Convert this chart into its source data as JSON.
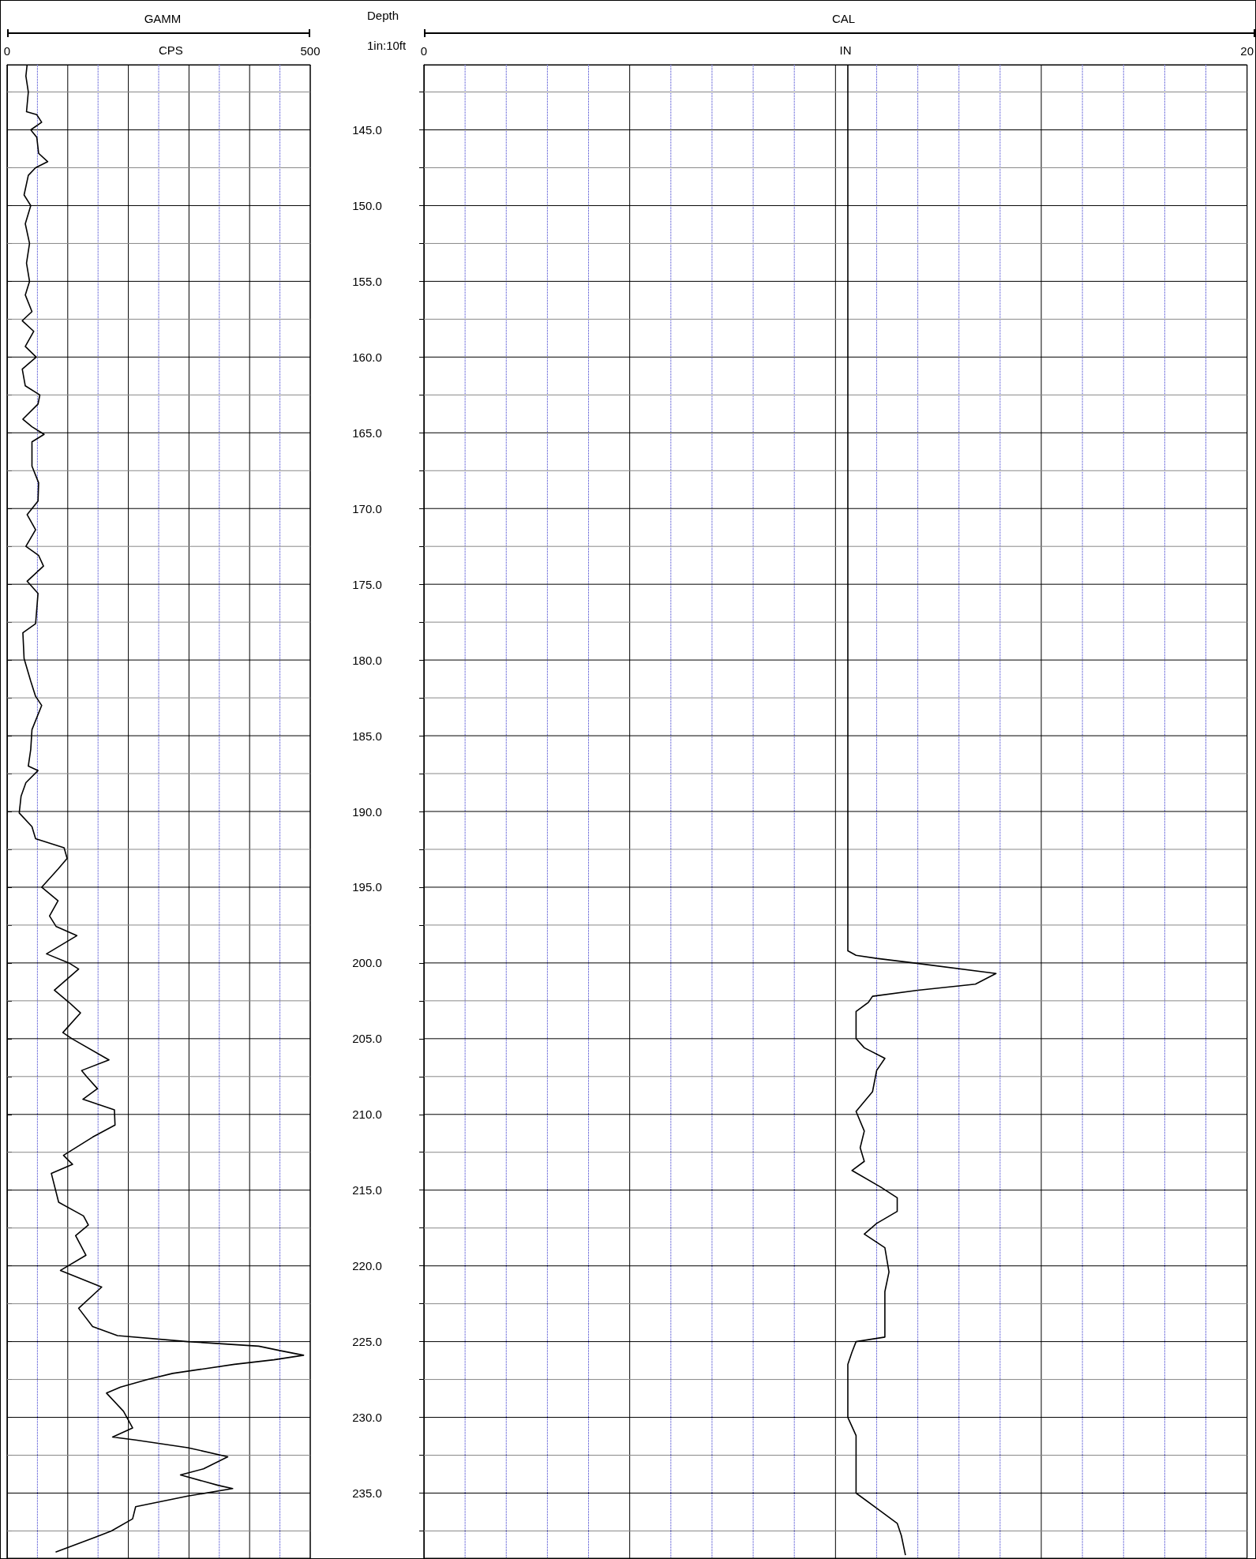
{
  "chart_data": [
    {
      "type": "line",
      "title": "GAMM",
      "xlabel": "CPS",
      "ylabel": "Depth",
      "annotations": [
        "1in:10ft"
      ],
      "grid": true,
      "marker": "none",
      "xlim": [
        0,
        500
      ],
      "xticks": [
        0,
        {
          "value": 50,
          "label": null
        },
        {
          "value": 100,
          "label": null
        },
        {
          "value": 150,
          "label": null
        },
        {
          "value": 200,
          "label": null
        },
        {
          "value": 250,
          "label": null
        },
        {
          "value": 300,
          "label": null
        },
        {
          "value": 350,
          "label": null
        },
        {
          "value": 400,
          "label": null
        },
        {
          "value": 450,
          "label": null
        },
        500
      ],
      "ylim": [
        239.3,
        140.7
      ],
      "yticks": [
        {
          "value": 142.5,
          "label": null
        },
        {
          "value": 145,
          "label": "145.0"
        },
        {
          "value": 147.5,
          "label": null
        },
        {
          "value": 150,
          "label": "150.0"
        },
        {
          "value": 152.5,
          "label": null
        },
        {
          "value": 155,
          "label": "155.0"
        },
        {
          "value": 157.5,
          "label": null
        },
        {
          "value": 160,
          "label": "160.0"
        },
        {
          "value": 162.5,
          "label": null
        },
        {
          "value": 165,
          "label": "165.0"
        },
        {
          "value": 167.5,
          "label": null
        },
        {
          "value": 170,
          "label": "170.0"
        },
        {
          "value": 172.5,
          "label": null
        },
        {
          "value": 175,
          "label": "175.0"
        },
        {
          "value": 177.5,
          "label": null
        },
        {
          "value": 180,
          "label": "180.0"
        },
        {
          "value": 182.5,
          "label": null
        },
        {
          "value": 185,
          "label": "185.0"
        },
        {
          "value": 187.5,
          "label": null
        },
        {
          "value": 190,
          "label": "190.0"
        },
        {
          "value": 192.5,
          "label": null
        },
        {
          "value": 195,
          "label": "195.0"
        },
        {
          "value": 197.5,
          "label": null
        },
        {
          "value": 200,
          "label": "200.0"
        },
        {
          "value": 202.5,
          "label": null
        },
        {
          "value": 205,
          "label": "205.0"
        },
        {
          "value": 207.5,
          "label": null
        },
        {
          "value": 210,
          "label": "210.0"
        },
        {
          "value": 212.5,
          "label": null
        },
        {
          "value": 215,
          "label": "215.0"
        },
        {
          "value": 217.5,
          "label": null
        },
        {
          "value": 220,
          "label": "220.0"
        },
        {
          "value": 222.5,
          "label": null
        },
        {
          "value": 225,
          "label": "225.0"
        },
        {
          "value": 227.5,
          "label": null
        },
        {
          "value": 230,
          "label": "230.0"
        },
        {
          "value": 232.5,
          "label": null
        },
        {
          "value": 235,
          "label": "235.0"
        },
        {
          "value": 237.5,
          "label": null
        }
      ],
      "series": [
        {
          "color": "#000000",
          "x": [
            33,
            31,
            35,
            32,
            49,
            57,
            39,
            49,
            52,
            67,
            47,
            35,
            28,
            39,
            30,
            37,
            32,
            37,
            30,
            41,
            25,
            44,
            30,
            48,
            25,
            30,
            54,
            51,
            26,
            41,
            61,
            41,
            41,
            52,
            51,
            33,
            47,
            31,
            52,
            60,
            33,
            51,
            47,
            26,
            28,
            39,
            47,
            57,
            41,
            39,
            35,
            51,
            31,
            23,
            20,
            41,
            47,
            94,
            99,
            84,
            57,
            84,
            70,
            81,
            115,
            65,
            102,
            118,
            78,
            102,
            121,
            92,
            107,
            168,
            123,
            131,
            149,
            125,
            177,
            178,
            141,
            93,
            108,
            73,
            85,
            126,
            134,
            113,
            130,
            88,
            156,
            118,
            141,
            182,
            298,
            415,
            451,
            489,
            440,
            375,
            273,
            232,
            187,
            164,
            192,
            207,
            174,
            212,
            298,
            364,
            324,
            286,
            349,
            372,
            298,
            212,
            207,
            172,
            146,
            80
          ],
          "values": [
            140.7,
            141.45,
            142.5,
            143.8,
            144.0,
            144.5,
            145,
            145.5,
            146.55,
            147.1,
            147.5,
            148.0,
            149.3,
            150,
            151.2,
            152.5,
            153.8,
            155,
            155.9,
            157,
            157.6,
            158.3,
            159.3,
            160,
            160.8,
            161.9,
            162.5,
            163.1,
            164.1,
            164.6,
            165.1,
            165.6,
            167.2,
            168.3,
            169.5,
            170.4,
            171.4,
            172.5,
            173.1,
            173.8,
            174.8,
            175.6,
            177.6,
            178.2,
            179.9,
            181.4,
            182.4,
            183.0,
            184.6,
            185.9,
            187.0,
            187.3,
            188.1,
            189.0,
            190.1,
            191.0,
            191.8,
            192.4,
            193.1,
            193.8,
            195.0,
            195.9,
            196.9,
            197.6,
            198.2,
            199.4,
            200,
            200.4,
            201.8,
            202.6,
            203.3,
            204.6,
            205,
            206.4,
            207.1,
            207.5,
            208.3,
            209.0,
            209.7,
            210.7,
            211.5,
            212.7,
            213.3,
            213.9,
            215.8,
            216.7,
            217.3,
            218.0,
            219.3,
            220.3,
            221.4,
            222.8,
            224.0,
            224.6,
            225.0,
            225.3,
            225.6,
            225.9,
            226.2,
            226.5,
            227.1,
            227.5,
            228.0,
            228.4,
            229.6,
            230.7,
            231.3,
            231.5,
            232.0,
            232.6,
            233.4,
            233.8,
            234.5,
            234.7,
            235.2,
            235.9,
            236.7,
            237.5,
            237.9,
            238.9
          ]
        }
      ]
    },
    {
      "type": "line",
      "title": "CAL",
      "xlabel": "IN",
      "grid": true,
      "marker": "none",
      "tick_labels": "x",
      "xlim": [
        0,
        20
      ],
      "xticks": [
        0,
        {
          "value": 1,
          "label": null
        },
        {
          "value": 2,
          "label": null
        },
        {
          "value": 3,
          "label": null
        },
        {
          "value": 4,
          "label": null
        },
        {
          "value": 5,
          "label": null
        },
        {
          "value": 6,
          "label": null
        },
        {
          "value": 7,
          "label": null
        },
        {
          "value": 8,
          "label": null
        },
        {
          "value": 9,
          "label": null
        },
        {
          "value": 10,
          "label": null
        },
        {
          "value": 11,
          "label": null
        },
        {
          "value": 12,
          "label": null
        },
        {
          "value": 13,
          "label": null
        },
        {
          "value": 14,
          "label": null
        },
        {
          "value": 15,
          "label": null
        },
        {
          "value": 16,
          "label": null
        },
        {
          "value": 17,
          "label": null
        },
        {
          "value": 18,
          "label": null
        },
        {
          "value": 19,
          "label": null
        },
        20
      ],
      "ylim": [
        239.3,
        140.7
      ],
      "yticks": [
        {
          "value": 142.5,
          "label": null
        },
        {
          "value": 145,
          "label": null
        },
        {
          "value": 147.5,
          "label": null
        },
        {
          "value": 150,
          "label": null
        },
        {
          "value": 152.5,
          "label": null
        },
        {
          "value": 155,
          "label": null
        },
        {
          "value": 157.5,
          "label": null
        },
        {
          "value": 160,
          "label": null
        },
        {
          "value": 162.5,
          "label": null
        },
        {
          "value": 165,
          "label": null
        },
        {
          "value": 167.5,
          "label": null
        },
        {
          "value": 170,
          "label": null
        },
        {
          "value": 172.5,
          "label": null
        },
        {
          "value": 175,
          "label": null
        },
        {
          "value": 177.5,
          "label": null
        },
        {
          "value": 180,
          "label": null
        },
        {
          "value": 182.5,
          "label": null
        },
        {
          "value": 185,
          "label": null
        },
        {
          "value": 187.5,
          "label": null
        },
        {
          "value": 190,
          "label": null
        },
        {
          "value": 192.5,
          "label": null
        },
        {
          "value": 195,
          "label": null
        },
        {
          "value": 197.5,
          "label": null
        },
        {
          "value": 200,
          "label": null
        },
        {
          "value": 202.5,
          "label": null
        },
        {
          "value": 205,
          "label": null
        },
        {
          "value": 207.5,
          "label": null
        },
        {
          "value": 210,
          "label": null
        },
        {
          "value": 212.5,
          "label": null
        },
        {
          "value": 215,
          "label": null
        },
        {
          "value": 217.5,
          "label": null
        },
        {
          "value": 220,
          "label": null
        },
        {
          "value": 222.5,
          "label": null
        },
        {
          "value": 225,
          "label": null
        },
        {
          "value": 227.5,
          "label": null
        },
        {
          "value": 230,
          "label": null
        },
        {
          "value": 232.5,
          "label": null
        },
        {
          "value": 235,
          "label": null
        },
        {
          "value": 237.5,
          "label": null
        }
      ],
      "series": [
        {
          "color": "#000000",
          "x": [
            10.3,
            10.3,
            10.3,
            10.5,
            11.0,
            11.9,
            13.9,
            13.4,
            12.0,
            10.9,
            10.8,
            10.5,
            10.5,
            10.5,
            10.7,
            11.2,
            11.0,
            10.9,
            10.5,
            10.7,
            10.6,
            10.7,
            10.4,
            11.1,
            11.5,
            11.5,
            11.0,
            10.7,
            11.2,
            11.3,
            11.2,
            11.2,
            11.2,
            10.5,
            10.4,
            10.3,
            10.3,
            10.3,
            10.5,
            10.5,
            10.5,
            10.5,
            11.0,
            11.5,
            11.6,
            11.7
          ],
          "values": [
            140.7,
            170,
            199.2,
            199.5,
            199.7,
            200.0,
            200.7,
            201.4,
            201.8,
            202.2,
            202.6,
            203.2,
            203.6,
            205.0,
            205.6,
            206.3,
            207.1,
            208.5,
            209.8,
            211.1,
            212.2,
            213.1,
            213.7,
            214.8,
            215.5,
            216.4,
            217.2,
            217.9,
            218.8,
            220.4,
            221.7,
            223.0,
            224.7,
            225.0,
            225.7,
            226.5,
            228.3,
            230.0,
            231.2,
            232.3,
            233.9,
            235.0,
            236.0,
            237.0,
            237.8,
            239.1
          ]
        }
      ]
    }
  ]
}
